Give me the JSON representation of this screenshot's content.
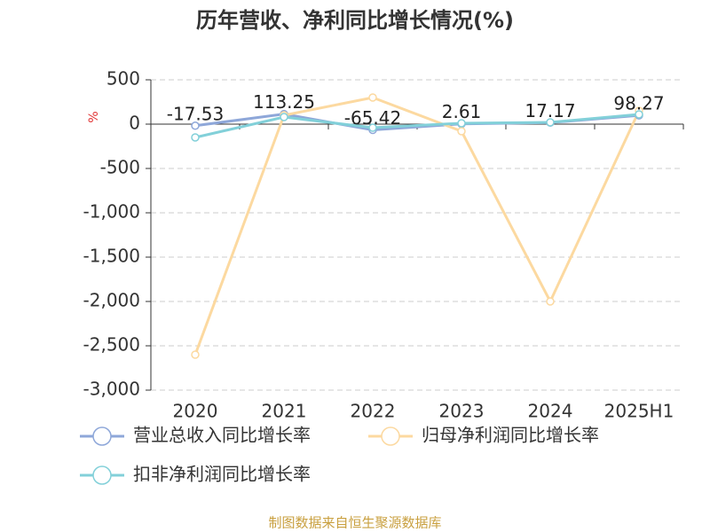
{
  "chart_data": {
    "type": "line",
    "title": "历年营收、净利同比增长情况(%)",
    "y_label": "%",
    "categories": [
      "2020",
      "2021",
      "2022",
      "2023",
      "2024",
      "2025H1"
    ],
    "series": [
      {
        "name": "营业总收入同比增长率",
        "color": "#8ea7d9",
        "values": [
          -17.53,
          113.25,
          -65.42,
          2.61,
          17.17,
          98.27
        ],
        "show_labels": true
      },
      {
        "name": "归母净利润同比增长率",
        "color": "#fcd9a0",
        "values": [
          -2600,
          100,
          300,
          -80,
          -2000,
          150
        ],
        "show_labels": false
      },
      {
        "name": "扣非净利润同比增长率",
        "color": "#82d0d9",
        "values": [
          -150,
          80,
          -40,
          10,
          20,
          110
        ],
        "show_labels": false
      }
    ],
    "ylim": [
      -3000,
      500
    ],
    "yticks": [
      500,
      0,
      {
        "value": -500,
        "label": "-500"
      },
      {
        "value": -1000,
        "label": "-1,000"
      },
      {
        "value": -1500,
        "label": "-1,500"
      },
      {
        "value": -2000,
        "label": "-2,000"
      },
      {
        "value": -2500,
        "label": "-2,500"
      },
      {
        "value": -3000,
        "label": "-3,000"
      }
    ],
    "grid": true,
    "source": "制图数据来自恒生聚源数据库"
  }
}
